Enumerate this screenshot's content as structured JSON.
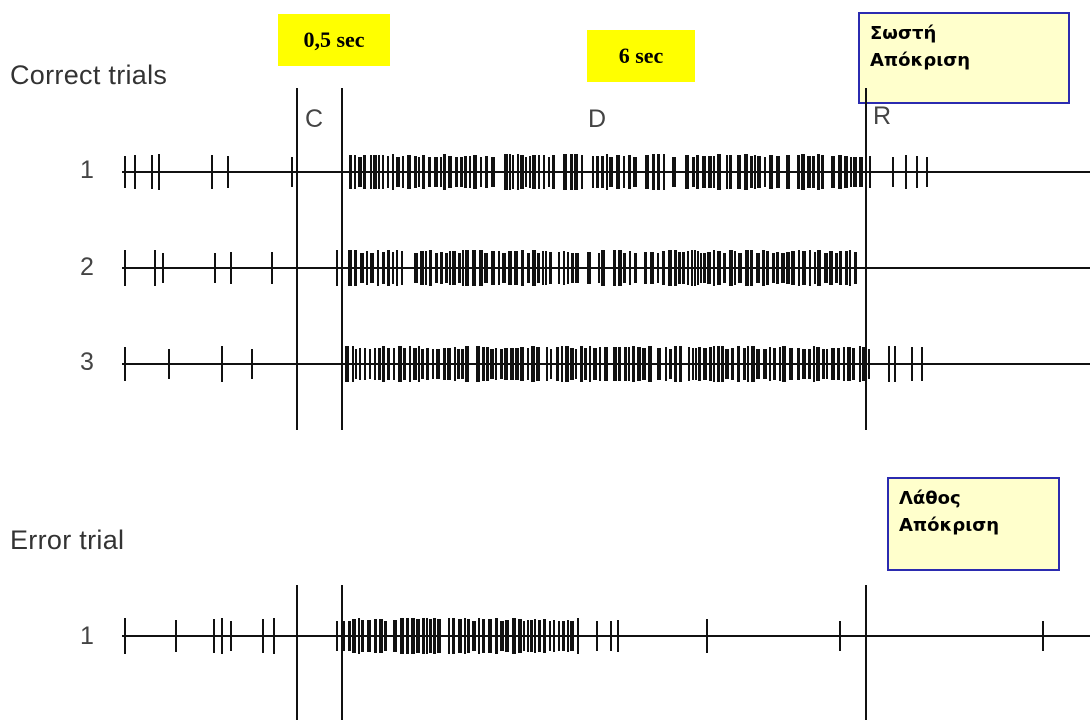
{
  "time_labels": {
    "cue_duration": "0,5 sec",
    "delay_duration": "6 sec"
  },
  "notes": {
    "correct_response": [
      "Σωστή",
      "Απόκριση"
    ],
    "error_response": [
      "Λάθος",
      "Απόκριση"
    ]
  },
  "sections": {
    "correct": "Correct trials",
    "error": "Error trial"
  },
  "epochs": {
    "cue": "C",
    "delay": "D",
    "response": "R"
  },
  "trials": {
    "correct": [
      {
        "number": "1",
        "seed": 11,
        "ends_at_response": false
      },
      {
        "number": "2",
        "seed": 29,
        "ends_at_response": true
      },
      {
        "number": "3",
        "seed": 47,
        "ends_at_response": false
      }
    ],
    "error": [
      {
        "number": "1",
        "seed": 83,
        "ends_at_response": false
      }
    ]
  },
  "colors": {
    "highlight": "#ffff00",
    "note_fill": "#ffffcc",
    "note_border": "#2b2bb0",
    "ink": "#111111"
  }
}
